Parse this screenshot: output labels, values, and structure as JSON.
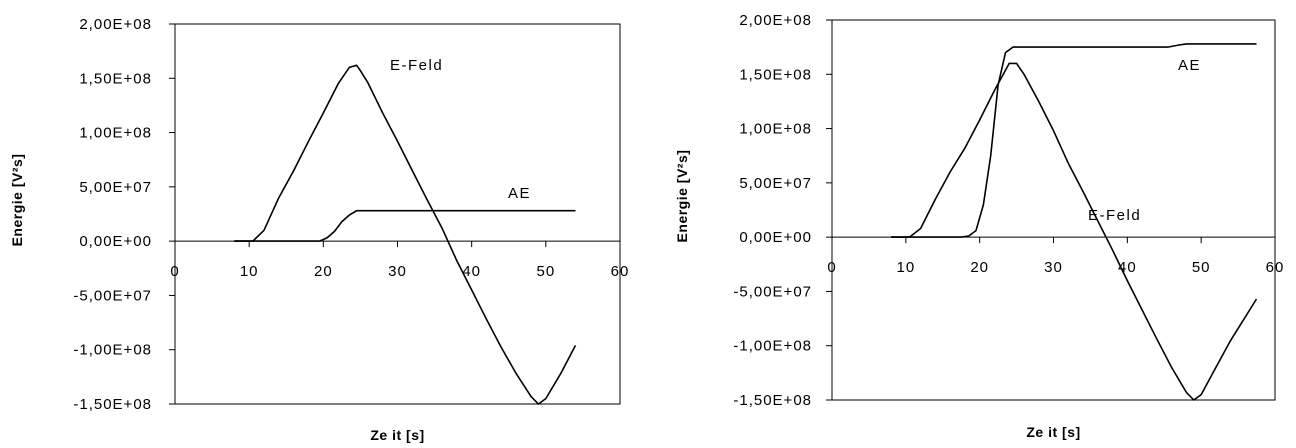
{
  "chart_data": [
    {
      "type": "line",
      "xlabel": "Ze it [s]",
      "ylabel": "Energie [V²s]",
      "xlim": [
        0,
        60
      ],
      "ylim": [
        -150000000,
        200000000
      ],
      "x_ticks": [
        0,
        10,
        20,
        30,
        40,
        50,
        60
      ],
      "x_tick_labels": [
        "0",
        "10",
        "20",
        "30",
        "40",
        "50",
        "60"
      ],
      "y_ticks": [
        200000000,
        150000000,
        100000000,
        50000000,
        0,
        -50000000,
        -100000000,
        -150000000
      ],
      "y_tick_labels": [
        "2,00E+08",
        "1,50E+08",
        "1,00E+08",
        "5,00E+07",
        "0,00E+00",
        "-5,00E+07",
        "-1,00E+08",
        "-1,50E+08"
      ],
      "series": [
        {
          "name": "E-Feld",
          "x": [
            8,
            10.5,
            12,
            14,
            16,
            18,
            20,
            22,
            23.5,
            24.5,
            25,
            26,
            28,
            30,
            32,
            34,
            36,
            38,
            40,
            42,
            44,
            46,
            48,
            49,
            50,
            52,
            54
          ],
          "values": [
            0,
            0,
            10000000,
            40000000,
            65000000,
            92000000,
            118000000,
            145000000,
            160000000,
            162000000,
            157000000,
            146000000,
            118000000,
            92000000,
            65000000,
            38000000,
            12000000,
            -18000000,
            -45000000,
            -72000000,
            -98000000,
            -122000000,
            -143000000,
            -150000000,
            -145000000,
            -122000000,
            -96000000
          ]
        },
        {
          "name": "AE",
          "x": [
            8,
            19.5,
            20.5,
            21.5,
            22.5,
            23.5,
            24.5,
            30,
            40,
            54
          ],
          "values": [
            0,
            0,
            3000000,
            9000000,
            18000000,
            24000000,
            28000000,
            28000000,
            28000000,
            28000000
          ]
        }
      ]
    },
    {
      "type": "line",
      "xlabel": "Ze it [s]",
      "ylabel": "Energie [V²s]",
      "xlim": [
        0,
        60
      ],
      "ylim": [
        -150000000,
        200000000
      ],
      "x_ticks": [
        0,
        10,
        20,
        30,
        40,
        50,
        60
      ],
      "x_tick_labels": [
        "0",
        "10",
        "20",
        "30",
        "40",
        "50",
        "60"
      ],
      "y_ticks": [
        200000000,
        150000000,
        100000000,
        50000000,
        0,
        -50000000,
        -100000000,
        -150000000
      ],
      "y_tick_labels": [
        "2,00E+08",
        "1,50E+08",
        "1,00E+08",
        "5,00E+07",
        "0,00E+00",
        "-5,00E+07",
        "-1,00E+08",
        "-1,50E+08"
      ],
      "series": [
        {
          "name": "E-Feld",
          "x": [
            8,
            10.5,
            12,
            14,
            16,
            18,
            20,
            22,
            24,
            25,
            26,
            28,
            30,
            32,
            34,
            36,
            38,
            40,
            42,
            44,
            46,
            48,
            49,
            50,
            52,
            54,
            57.5
          ],
          "values": [
            0,
            0,
            8000000,
            35000000,
            60000000,
            82000000,
            108000000,
            135000000,
            160000000,
            160000000,
            150000000,
            125000000,
            98000000,
            68000000,
            42000000,
            15000000,
            -12000000,
            -40000000,
            -67000000,
            -94000000,
            -120000000,
            -143000000,
            -150000000,
            -145000000,
            -120000000,
            -95000000,
            -57000000
          ]
        },
        {
          "name": "AE",
          "x": [
            8,
            17.5,
            18.5,
            19.5,
            20.5,
            21.5,
            22.5,
            23.5,
            24.5,
            25.5,
            30,
            40,
            45.5,
            47,
            48,
            57.5
          ],
          "values": [
            0,
            0,
            1000000,
            6000000,
            30000000,
            75000000,
            140000000,
            170000000,
            175000000,
            175000000,
            175000000,
            175000000,
            175000000,
            177000000,
            178000000,
            178000000
          ]
        }
      ]
    }
  ]
}
